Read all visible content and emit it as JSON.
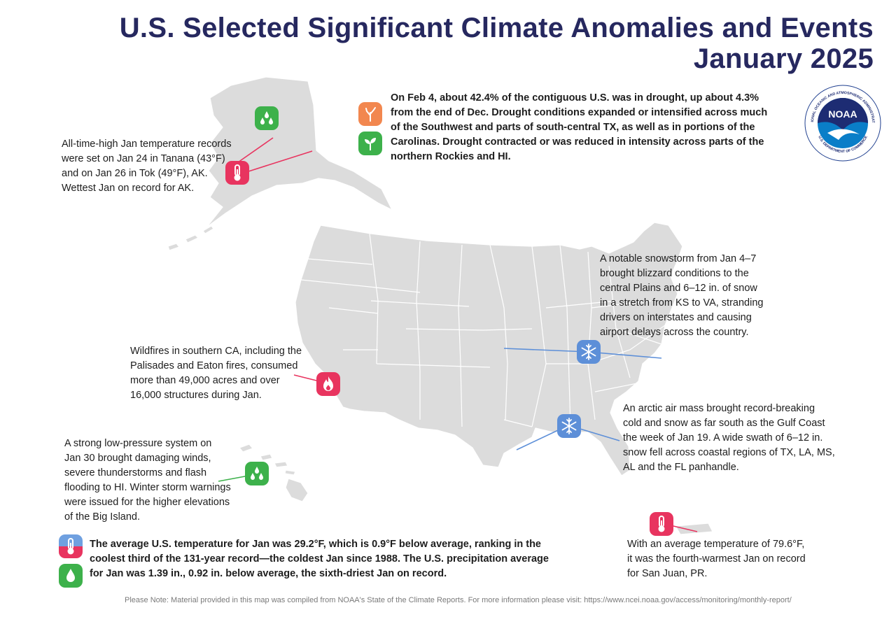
{
  "title_line1": "U.S. Selected Significant Climate Anomalies and Events",
  "title_line2": "January 2025",
  "logo": {
    "name": "NOAA",
    "ring_text": "NATIONAL OCEANIC AND ATMOSPHERIC ADMINISTRATION",
    "ring_bottom": "U.S. DEPARTMENT OF COMMERCE"
  },
  "callouts": {
    "alaska": [
      "All-time-high Jan temperature records",
      "were set on Jan 24 in Tanana (43°F)",
      "and on Jan 26 in Tok (49°F), AK.",
      "Wettest Jan on record for AK."
    ],
    "drought": [
      "On Feb 4, about 42.4% of the contiguous U.S. was in drought, up about 4.3%",
      "from the end of Dec. Drought conditions expanded or intensified across much",
      "of the Southwest and parts of south-central TX, as well as in portions of the",
      "Carolinas. Drought contracted or was reduced in intensity across parts of the",
      "northern Rockies and HI."
    ],
    "snowstorm": [
      "A notable snowstorm from Jan 4–7",
      "brought blizzard conditions to the",
      "central Plains and 6–12 in. of snow",
      "in a stretch from KS to VA, stranding",
      "drivers on interstates and causing",
      "airport delays across the country."
    ],
    "wildfires": [
      "Wildfires in southern CA, including the",
      "Palisades and Eaton fires, consumed",
      "more than 49,000 acres and over",
      "16,000 structures during Jan."
    ],
    "arctic": [
      "An arctic air mass brought record-breaking",
      "cold and snow as far south as the Gulf Coast",
      "the week of Jan 19. A wide swath of 6–12 in.",
      "snow fell across coastal regions of TX, LA, MS,",
      "AL and the FL panhandle."
    ],
    "hawaii": [
      "A strong low-pressure system on",
      "Jan 30 brought damaging winds,",
      "severe thunderstorms and flash",
      "flooding to HI. Winter storm warnings",
      "were issued for the higher elevations",
      "of the Big Island."
    ],
    "puerto_rico": [
      "With an average temperature of 79.6°F,",
      "it was the fourth-warmest Jan on record",
      "for San Juan, PR."
    ],
    "national": [
      "The average U.S. temperature for Jan was 29.2°F, which is 0.9°F below average, ranking in the",
      "coolest third of the 131-year record—the coldest Jan since 1988. The U.S. precipitation average",
      "for Jan was 1.39 in., 0.92 in. below average, the sixth-driest Jan on record."
    ]
  },
  "footer_note": "Please Note: Material provided in this map was compiled from NOAA's State of the Climate Reports. For more information please visit: https://www.ncei.noaa.gov/access/monitoring/monthly-report/",
  "colors": {
    "title": "#26285f",
    "land": "#dcdcdc",
    "warm": "#e8345f",
    "wet": "#3db14b",
    "drought": "#f2874f",
    "cold": "#5d8fd8"
  },
  "icons": [
    "thermometer-icon",
    "raindrops-icon",
    "drought-icon",
    "improvement-icon",
    "snowflake-icon",
    "fire-icon",
    "precipitation-icon",
    "temperature-split-icon"
  ]
}
